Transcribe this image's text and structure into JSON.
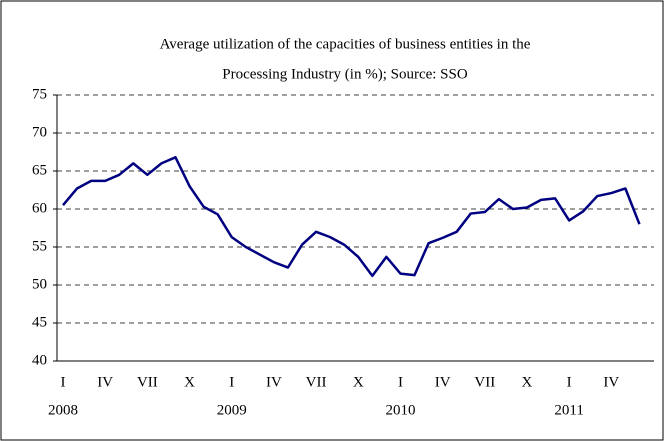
{
  "chart_data": {
    "type": "line",
    "title": [
      "Average utilization of the capacities of business entities in the",
      "Processing Industry (in %); Source: SSO"
    ],
    "categories": [
      "I",
      null,
      null,
      "IV",
      null,
      null,
      "VII",
      null,
      null,
      "X",
      null,
      null,
      "I",
      null,
      null,
      "IV",
      null,
      null,
      "VII",
      null,
      null,
      "X",
      null,
      null,
      "I",
      null,
      null,
      "IV",
      null,
      null,
      "VII",
      null,
      null,
      "X",
      null,
      null,
      "I",
      null,
      null,
      "IV",
      null,
      null
    ],
    "year_labels": [
      "2008",
      null,
      null,
      null,
      null,
      null,
      null,
      null,
      null,
      null,
      null,
      null,
      "2009",
      null,
      null,
      null,
      null,
      null,
      null,
      null,
      null,
      null,
      null,
      null,
      "2010",
      null,
      null,
      null,
      null,
      null,
      null,
      null,
      null,
      null,
      null,
      null,
      "2011",
      null,
      null,
      null,
      null,
      null
    ],
    "series": [
      {
        "color": "#000080",
        "values": [
          60.5,
          62.7,
          63.7,
          63.7,
          64.5,
          66,
          64.5,
          66,
          66.8,
          63,
          60.3,
          59.3,
          56.3,
          55,
          54,
          53,
          52.3,
          55.3,
          57,
          56.3,
          55.3,
          53.7,
          51.2,
          53.7,
          51.5,
          51.3,
          55.5,
          56.2,
          57,
          59.4,
          59.6,
          61.3,
          60,
          60.2,
          61.2,
          61.4,
          58.5,
          59.7,
          61.7,
          62.1,
          62.7,
          58
        ]
      }
    ],
    "ylim": [
      40,
      75
    ],
    "yticks": [
      40,
      45,
      50,
      55,
      60,
      65,
      70,
      75
    ],
    "grid": true
  }
}
